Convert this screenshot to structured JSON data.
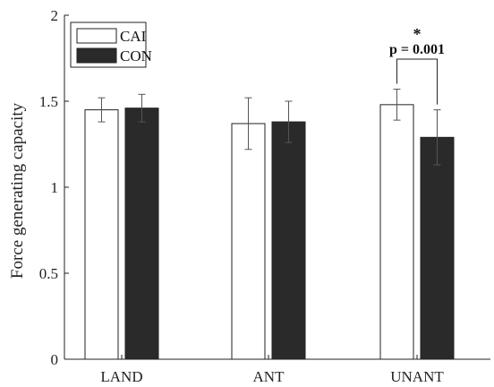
{
  "chart_data": {
    "type": "bar",
    "ylabel": "Force generating capacity",
    "ylim": [
      0,
      2
    ],
    "yticks": [
      "0",
      "0.5",
      "1",
      "1.5",
      "2"
    ],
    "ytick_values": [
      0,
      0.5,
      1,
      1.5,
      2
    ],
    "categories": [
      "LAND",
      "ANT",
      "UNANT"
    ],
    "series": [
      {
        "name": "CAI",
        "values": [
          1.45,
          1.37,
          1.48
        ],
        "errors": [
          0.07,
          0.15,
          0.09
        ],
        "color": "#ffffff"
      },
      {
        "name": "CON",
        "values": [
          1.46,
          1.38,
          1.29
        ],
        "errors": [
          0.08,
          0.12,
          0.16
        ],
        "color": "#2a2a2a"
      }
    ],
    "legend_position": "top-left",
    "grid": false,
    "annotation": {
      "category": "UNANT",
      "star": "*",
      "text": "p = 0.001"
    }
  }
}
